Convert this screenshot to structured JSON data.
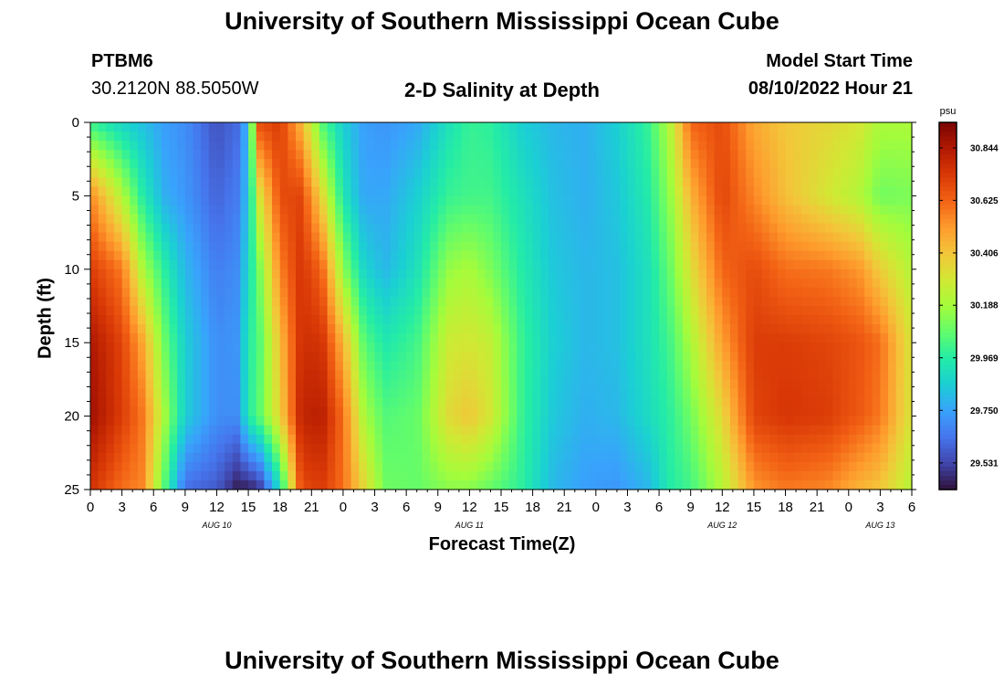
{
  "header": {
    "title": "University of Southern Mississippi Ocean Cube",
    "station_id": "PTBM6",
    "station_coords": "30.2120N  88.5050W",
    "plot_title": "2-D Salinity at Depth",
    "model_start_label": "Model Start Time",
    "model_start_value": "08/10/2022 Hour 21"
  },
  "footer": {
    "title": "University of Southern Mississippi Ocean Cube"
  },
  "chart_data": {
    "type": "heatmap",
    "title": "2-D Salinity at Depth",
    "xlabel": "Forecast Time(Z)",
    "ylabel": "Depth (ft)",
    "x_unit": "hour",
    "x_range_hours": [
      0,
      78
    ],
    "x_ticks": [
      "0",
      "3",
      "6",
      "9",
      "12",
      "15",
      "18",
      "21",
      "0",
      "3",
      "6",
      "9",
      "12",
      "15",
      "18",
      "21",
      "0",
      "3",
      "6",
      "9",
      "12",
      "15",
      "18",
      "21",
      "0",
      "3",
      "6"
    ],
    "date_labels": [
      {
        "label": "AUG 10",
        "hour": 12
      },
      {
        "label": "AUG 11",
        "hour": 36
      },
      {
        "label": "AUG 12",
        "hour": 60
      },
      {
        "label": "AUG 13",
        "hour": 75
      }
    ],
    "y_ticks": [
      "0",
      "5",
      "10",
      "15",
      "20",
      "25"
    ],
    "ylim": [
      0,
      25
    ],
    "y_inverted": true,
    "colorbar": {
      "unit": "psu",
      "range": [
        29.42,
        30.95
      ],
      "tick_values": [
        29.531,
        29.75,
        29.969,
        30.188,
        30.406,
        30.625,
        30.844
      ],
      "tick_labels": [
        "29.531",
        "29.750",
        "29.969",
        "30.188",
        "30.406",
        "30.625",
        "30.844"
      ],
      "colormap": [
        "#30123b",
        "#4145ab",
        "#4675ed",
        "#39a2fc",
        "#1bcfd4",
        "#24eca6",
        "#61fc6c",
        "#a4fc3b",
        "#d1e834",
        "#f3c63a",
        "#fe9b2d",
        "#f36315",
        "#d93806",
        "#b11901",
        "#7a0403"
      ]
    },
    "depth_samples_ft": [
      0,
      5,
      10,
      15,
      20,
      25
    ],
    "series": [
      {
        "hour": 0,
        "salinity_by_depth": [
          30.0,
          30.55,
          30.72,
          30.85,
          30.88,
          30.75
        ]
      },
      {
        "hour": 3,
        "salinity_by_depth": [
          29.88,
          30.22,
          30.58,
          30.7,
          30.72,
          30.6
        ]
      },
      {
        "hour": 5,
        "salinity_by_depth": [
          29.82,
          29.96,
          30.2,
          30.48,
          30.58,
          30.55
        ]
      },
      {
        "hour": 7,
        "salinity_by_depth": [
          29.74,
          29.78,
          29.98,
          30.1,
          30.2,
          30.06
        ]
      },
      {
        "hour": 9,
        "salinity_by_depth": [
          29.7,
          29.72,
          29.8,
          29.86,
          29.86,
          29.62
        ]
      },
      {
        "hour": 12,
        "salinity_by_depth": [
          29.56,
          29.6,
          29.66,
          29.7,
          29.7,
          29.58
        ]
      },
      {
        "hour": 14,
        "salinity_by_depth": [
          29.62,
          29.66,
          29.7,
          29.72,
          29.7,
          29.44
        ]
      },
      {
        "hour": 15,
        "salinity_by_depth": [
          29.82,
          29.84,
          29.9,
          29.96,
          29.96,
          29.45
        ]
      },
      {
        "hour": 16,
        "salinity_by_depth": [
          30.68,
          30.3,
          30.1,
          30.04,
          30.06,
          29.48
        ]
      },
      {
        "hour": 18,
        "salinity_by_depth": [
          30.72,
          30.68,
          30.56,
          30.42,
          30.36,
          29.9
        ]
      },
      {
        "hour": 20,
        "salinity_by_depth": [
          30.45,
          30.7,
          30.74,
          30.76,
          30.8,
          30.68
        ]
      },
      {
        "hour": 22,
        "salinity_by_depth": [
          30.05,
          30.35,
          30.62,
          30.75,
          30.82,
          30.72
        ]
      },
      {
        "hour": 24,
        "salinity_by_depth": [
          29.86,
          29.94,
          30.15,
          30.45,
          30.6,
          30.6
        ]
      },
      {
        "hour": 26,
        "salinity_by_depth": [
          29.74,
          29.76,
          29.88,
          30.06,
          30.2,
          30.35
        ]
      },
      {
        "hour": 28,
        "salinity_by_depth": [
          29.72,
          29.76,
          29.8,
          29.95,
          30.05,
          30.1
        ]
      },
      {
        "hour": 31,
        "salinity_by_depth": [
          29.76,
          29.86,
          29.92,
          30.02,
          30.08,
          30.08
        ]
      },
      {
        "hour": 34,
        "salinity_by_depth": [
          29.92,
          30.0,
          30.16,
          30.28,
          30.34,
          30.14
        ]
      },
      {
        "hour": 36,
        "salinity_by_depth": [
          30.0,
          30.02,
          30.2,
          30.3,
          30.4,
          30.14
        ]
      },
      {
        "hour": 38,
        "salinity_by_depth": [
          29.98,
          30.02,
          30.12,
          30.26,
          30.3,
          30.08
        ]
      },
      {
        "hour": 41,
        "salinity_by_depth": [
          29.86,
          29.92,
          29.96,
          30.0,
          30.0,
          29.98
        ]
      },
      {
        "hour": 44,
        "salinity_by_depth": [
          29.8,
          29.82,
          29.84,
          29.86,
          29.84,
          29.8
        ]
      },
      {
        "hour": 47,
        "salinity_by_depth": [
          29.78,
          29.78,
          29.8,
          29.8,
          29.78,
          29.74
        ]
      },
      {
        "hour": 50,
        "salinity_by_depth": [
          29.86,
          29.84,
          29.82,
          29.82,
          29.8,
          29.72
        ]
      },
      {
        "hour": 53,
        "salinity_by_depth": [
          30.0,
          29.96,
          29.92,
          29.92,
          29.9,
          29.8
        ]
      },
      {
        "hour": 55,
        "salinity_by_depth": [
          30.22,
          30.15,
          30.08,
          30.02,
          29.98,
          29.96
        ]
      },
      {
        "hour": 57,
        "salinity_by_depth": [
          30.62,
          30.45,
          30.32,
          30.2,
          30.1,
          30.02
        ]
      },
      {
        "hour": 60,
        "salinity_by_depth": [
          30.68,
          30.7,
          30.62,
          30.5,
          30.35,
          30.22
        ]
      },
      {
        "hour": 63,
        "salinity_by_depth": [
          30.48,
          30.55,
          30.68,
          30.72,
          30.7,
          30.52
        ]
      },
      {
        "hour": 66,
        "salinity_by_depth": [
          30.4,
          30.42,
          30.6,
          30.72,
          30.74,
          30.58
        ]
      },
      {
        "hour": 70,
        "salinity_by_depth": [
          30.35,
          30.3,
          30.58,
          30.7,
          30.72,
          30.55
        ]
      },
      {
        "hour": 73,
        "salinity_by_depth": [
          30.3,
          30.22,
          30.52,
          30.66,
          30.65,
          30.45
        ]
      },
      {
        "hour": 75,
        "salinity_by_depth": [
          30.2,
          30.1,
          30.38,
          30.6,
          30.58,
          30.4
        ]
      },
      {
        "hour": 78,
        "salinity_by_depth": [
          30.2,
          30.12,
          30.22,
          30.3,
          30.3,
          30.22
        ]
      }
    ]
  }
}
